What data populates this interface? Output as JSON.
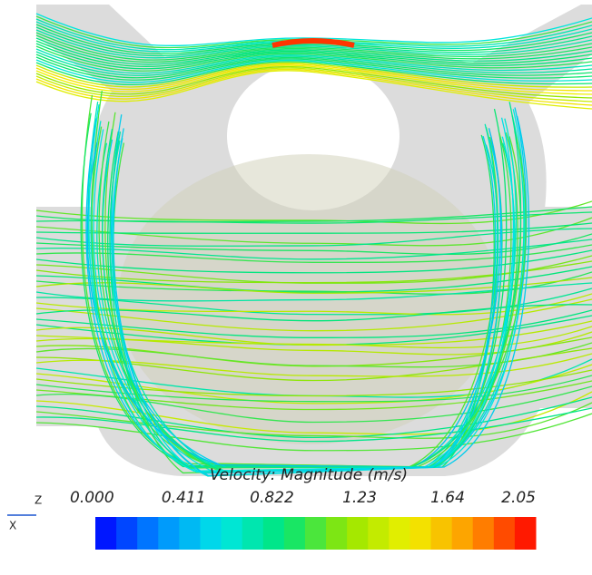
{
  "colorbar": {
    "title": "Velocity: Magnitude (m/s)",
    "range": [
      0,
      2.05
    ],
    "ticks": [
      {
        "value": 0,
        "label": "0.000"
      },
      0.411,
      0.822,
      1.23,
      1.64,
      2.05
    ]
  },
  "triad": {
    "labels": [
      "Z",
      "X"
    ]
  }
}
